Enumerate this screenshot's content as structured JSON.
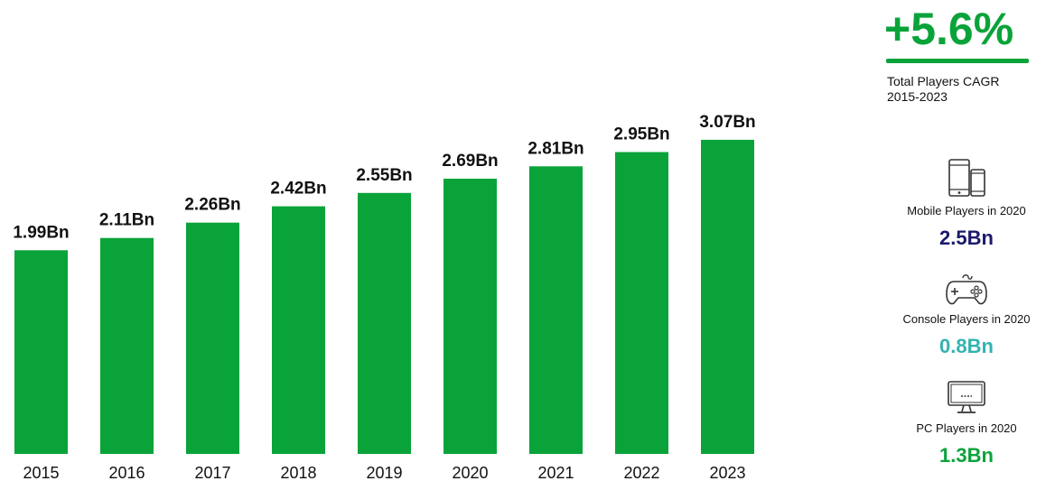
{
  "chart_data": {
    "type": "bar",
    "categories": [
      "2015",
      "2016",
      "2017",
      "2018",
      "2019",
      "2020",
      "2021",
      "2022",
      "2023"
    ],
    "values": [
      1.99,
      2.11,
      2.26,
      2.42,
      2.55,
      2.69,
      2.81,
      2.95,
      3.07
    ],
    "value_labels": [
      "1.99Bn",
      "2.11Bn",
      "2.26Bn",
      "2.42Bn",
      "2.55Bn",
      "2.69Bn",
      "2.81Bn",
      "2.95Bn",
      "3.07Bn"
    ],
    "title": "",
    "xlabel": "",
    "ylabel": "",
    "ylim": [
      0,
      3.07
    ],
    "grid": false,
    "bar_color": "#0aa33a"
  },
  "summary": {
    "cagr_value": "+5.6%",
    "cagr_label_line1": "Total Players CAGR",
    "cagr_label_line2": "2015-2023",
    "accent_color": "#0aa33a"
  },
  "segments": [
    {
      "icon": "smartphone-tablet-icon",
      "label": "Mobile Players in 2020",
      "value": "2.5Bn",
      "color": "#1b1a6b"
    },
    {
      "icon": "gamepad-icon",
      "label": "Console Players in 2020",
      "value": "0.8Bn",
      "color": "#33b3b0"
    },
    {
      "icon": "monitor-icon",
      "label": "PC Players in 2020",
      "value": "1.3Bn",
      "color": "#0aa33a"
    }
  ]
}
